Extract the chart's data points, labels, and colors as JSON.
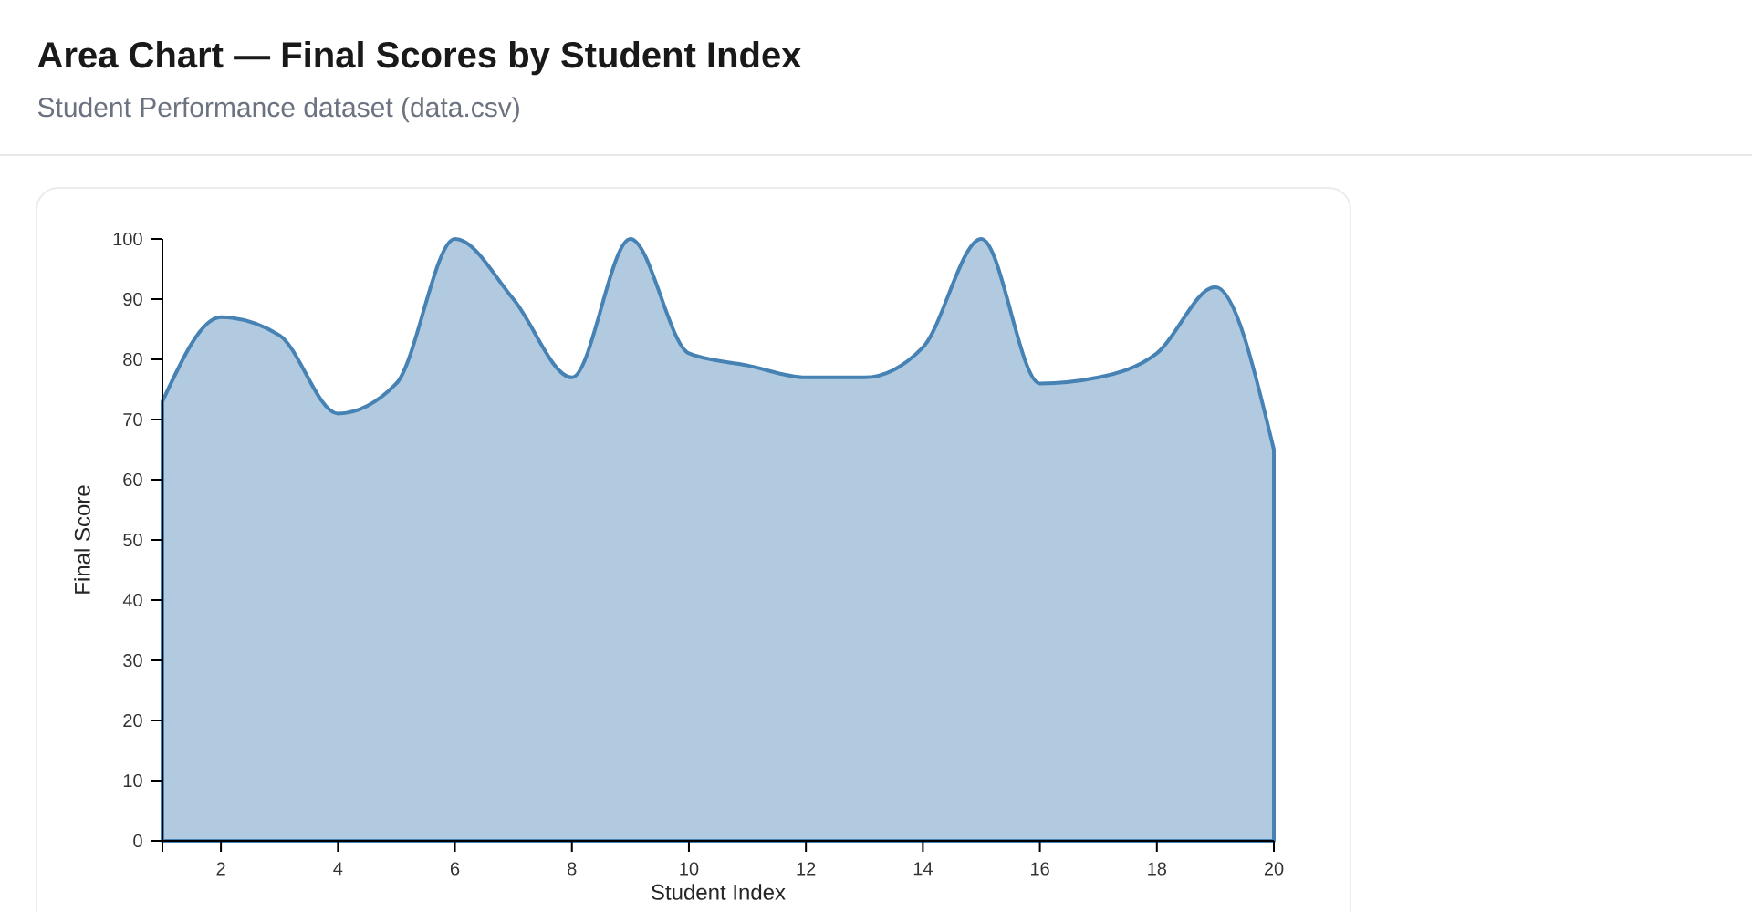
{
  "chart_data": {
    "type": "area",
    "title": "Area Chart — Final Scores by Student Index",
    "subtitle": "Student Performance dataset (data.csv)",
    "xlabel": "Student Index",
    "ylabel": "Final Score",
    "x": [
      1,
      2,
      3,
      4,
      5,
      6,
      7,
      8,
      9,
      10,
      11,
      12,
      13,
      14,
      15,
      16,
      17,
      18,
      19,
      20
    ],
    "values": [
      73,
      87,
      84,
      71,
      76,
      100,
      90,
      77,
      100,
      81,
      79,
      77,
      77,
      82,
      100,
      76,
      77,
      81,
      92,
      65
    ],
    "color": "#4682b4",
    "xlim": [
      1,
      20
    ],
    "ylim": [
      0,
      100
    ],
    "xticks": [
      {
        "value": 1,
        "label": null
      },
      2,
      4,
      6,
      8,
      10,
      12,
      14,
      16,
      18,
      20
    ],
    "yticks": [
      0,
      10,
      20,
      30,
      40,
      50,
      60,
      70,
      80,
      90,
      100
    ]
  }
}
